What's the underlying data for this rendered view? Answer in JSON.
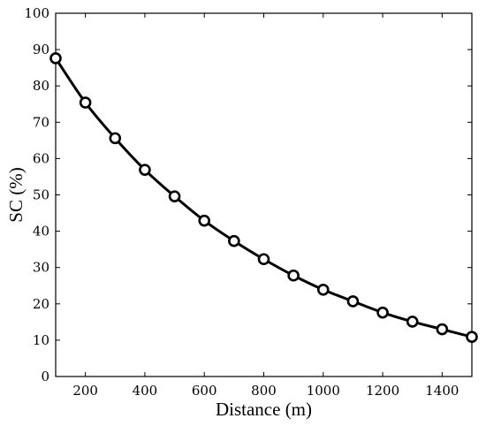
{
  "chart_data": {
    "type": "line",
    "title": "",
    "xlabel": "Distance (m)",
    "ylabel": "SC (%)",
    "xlim": [
      100,
      1500
    ],
    "ylim": [
      0,
      100
    ],
    "x_ticks": [
      200,
      400,
      600,
      800,
      1000,
      1200,
      1400
    ],
    "y_ticks": [
      0,
      10,
      20,
      30,
      40,
      50,
      60,
      70,
      80,
      90,
      100
    ],
    "grid": false,
    "legend": "none",
    "series": [
      {
        "marker": "circle",
        "color": "#000000",
        "x": [
          100,
          200,
          300,
          400,
          500,
          600,
          700,
          800,
          900,
          1000,
          1100,
          1200,
          1300,
          1400,
          1500
        ],
        "y": [
          87.6,
          75.4,
          65.6,
          56.9,
          49.6,
          42.9,
          37.3,
          32.3,
          27.8,
          23.9,
          20.7,
          17.6,
          15.1,
          13.0,
          10.9
        ]
      }
    ]
  }
}
